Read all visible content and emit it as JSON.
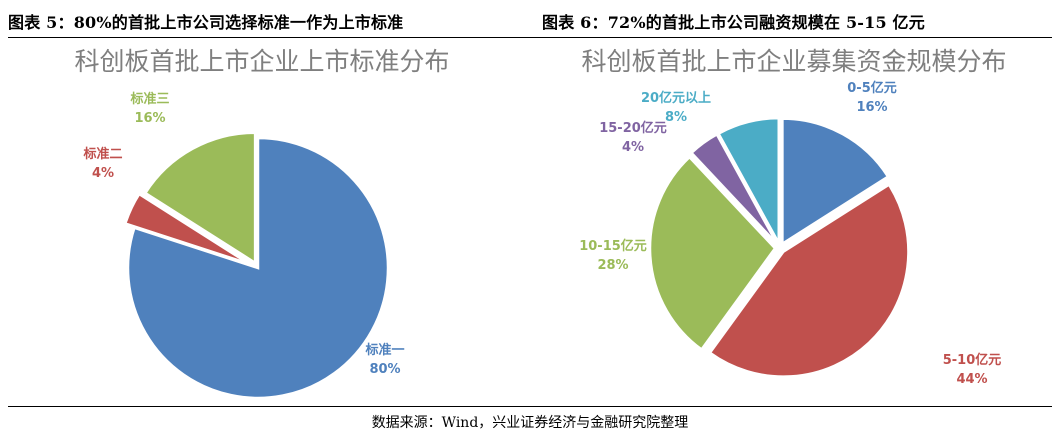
{
  "header": {
    "left_caption": "图表 5：80%的首批上市公司选择标准一作为上市标准",
    "right_caption": "图表 6：72%的首批上市公司融资规模在 5-15 亿元"
  },
  "footer": {
    "source": "数据来源：Wind，兴业证券经济与金融研究院整理"
  },
  "chart_data": [
    {
      "type": "pie",
      "title": "科创板首批上市企业上市标准分布",
      "categories": [
        "标准一",
        "标准二",
        "标准三"
      ],
      "values": [
        80,
        4,
        16
      ],
      "value_labels": [
        "80%",
        "4%",
        "16%"
      ],
      "colors": [
        "#4f81bd",
        "#c0504d",
        "#9bbb59"
      ],
      "label_colors": [
        "#4f81bd",
        "#c0504d",
        "#9bbb59"
      ],
      "exploded": [
        "标准二",
        "标准三"
      ],
      "legend": "none"
    },
    {
      "type": "pie",
      "title": "科创板首批上市企业募集资金规模分布",
      "categories": [
        "0-5亿元",
        "5-10亿元",
        "10-15亿元",
        "15-20亿元",
        "20亿元以上"
      ],
      "values": [
        16,
        44,
        28,
        4,
        8
      ],
      "value_labels": [
        "16%",
        "44%",
        "28%",
        "4%",
        "8%"
      ],
      "colors": [
        "#4f81bd",
        "#c0504d",
        "#9bbb59",
        "#8064a2",
        "#4bacc6"
      ],
      "label_colors": [
        "#4f81bd",
        "#c0504d",
        "#9bbb59",
        "#8064a2",
        "#4bacc6"
      ],
      "exploded": [
        "0-5亿元",
        "5-10亿元",
        "10-15亿元",
        "15-20亿元",
        "20亿元以上"
      ],
      "legend": "none"
    }
  ]
}
